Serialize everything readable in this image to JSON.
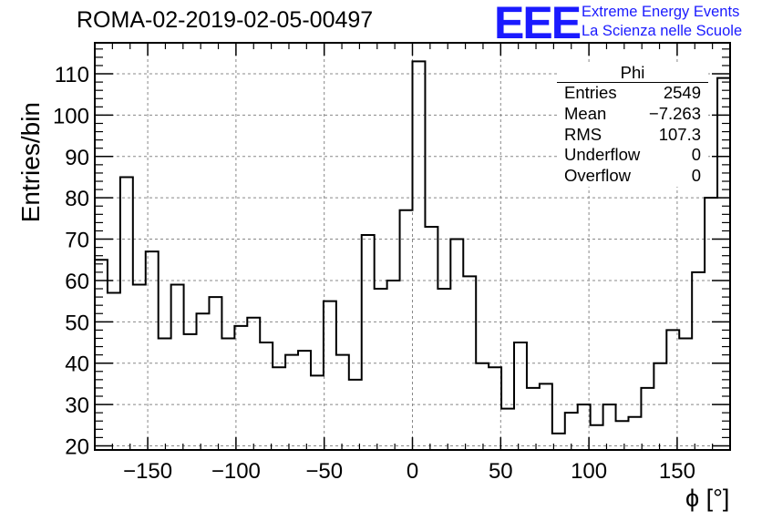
{
  "title": "ROMA-02-2019-02-05-00497",
  "logo": {
    "mark": "EEE",
    "line1": "Extreme Energy Events",
    "line2": "La Scienza nelle Scuole",
    "color": "#1a1aff"
  },
  "stats": {
    "name": "Phi",
    "rows": [
      {
        "label": "Entries",
        "value": "2549"
      },
      {
        "label": "Mean",
        "value": "−7.263"
      },
      {
        "label": "RMS",
        "value": "107.3"
      },
      {
        "label": "Underflow",
        "value": "0"
      },
      {
        "label": "Overflow",
        "value": "0"
      }
    ]
  },
  "chart_data": {
    "type": "bar",
    "histogram": true,
    "title": "ROMA-02-2019-02-05-00497",
    "xlabel": "ϕ [°]",
    "ylabel": "Entries/bin",
    "xlim": [
      -180,
      180
    ],
    "ylim": [
      19,
      117.5
    ],
    "bin_width": 7.2,
    "xticks": [
      -150,
      -100,
      -50,
      0,
      50,
      100,
      150
    ],
    "xtick_labels": [
      "−150",
      "−100",
      "−50",
      "0",
      "50",
      "100",
      "150"
    ],
    "yticks": [
      20,
      30,
      40,
      50,
      60,
      70,
      80,
      90,
      100,
      110
    ],
    "grid": true,
    "values": [
      65,
      57,
      85,
      59,
      67,
      46,
      59,
      47,
      52,
      56,
      46,
      49,
      51,
      45,
      39,
      42,
      43,
      37,
      55,
      42,
      36,
      71,
      58,
      60,
      77,
      113,
      73,
      58,
      70,
      61,
      40,
      39,
      29,
      45,
      34,
      35,
      23,
      28,
      30,
      25,
      30,
      26,
      27,
      34,
      40,
      48,
      46,
      62,
      80,
      109
    ]
  }
}
